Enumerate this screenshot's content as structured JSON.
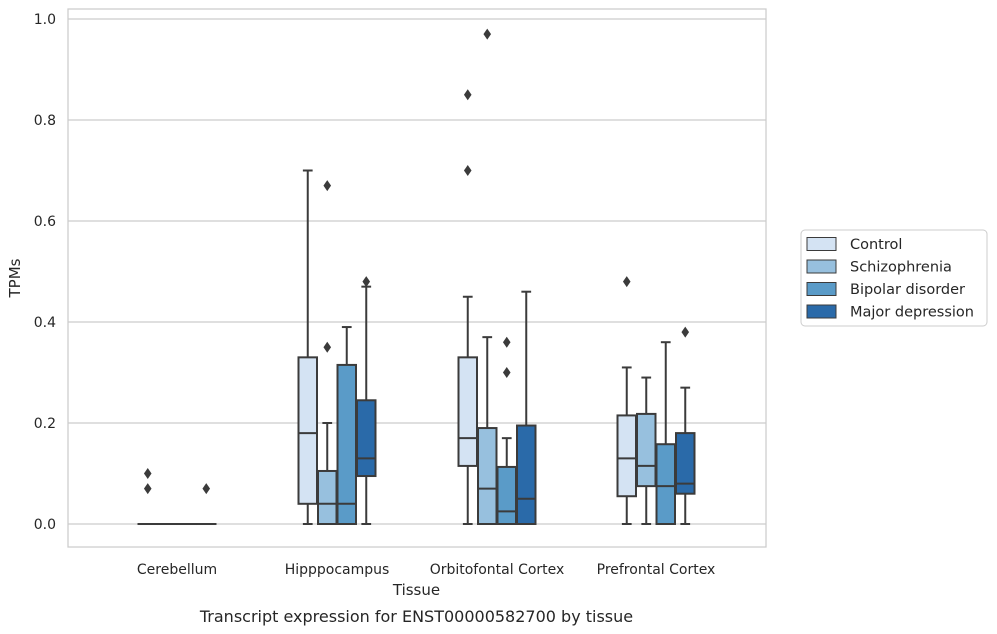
{
  "chart_data": {
    "type": "box",
    "caption": "Transcript expression for ENST00000582700 by tissue",
    "xlabel": "Tissue",
    "ylabel": "TPMs",
    "ylim": [
      -0.045,
      1.02
    ],
    "yticks": [
      0.0,
      0.2,
      0.4,
      0.6,
      0.8,
      1.0
    ],
    "ytick_labels": [
      "0.0",
      "0.2",
      "0.4",
      "0.6",
      "0.8",
      "1.0"
    ],
    "grid": "horizontal",
    "legend_position": "right",
    "categories": [
      "Cerebellum",
      "Hipppocampus",
      "Orbitofontal Cortex",
      "Prefrontal Cortex"
    ],
    "series": [
      {
        "name": "Control",
        "color": "#d4e3f3",
        "boxes": [
          {
            "whisker_low": 0.0,
            "q1": 0.0,
            "median": 0.0,
            "q3": 0.0,
            "whisker_high": 0.0,
            "outliers": [
              0.07,
              0.1
            ]
          },
          {
            "whisker_low": 0.0,
            "q1": 0.04,
            "median": 0.18,
            "q3": 0.33,
            "whisker_high": 0.7,
            "outliers": []
          },
          {
            "whisker_low": 0.0,
            "q1": 0.115,
            "median": 0.17,
            "q3": 0.33,
            "whisker_high": 0.45,
            "outliers": [
              0.7,
              0.85
            ]
          },
          {
            "whisker_low": 0.0,
            "q1": 0.055,
            "median": 0.13,
            "q3": 0.215,
            "whisker_high": 0.31,
            "outliers": [
              0.48
            ]
          }
        ]
      },
      {
        "name": "Schizophrenia",
        "color": "#97c0de",
        "boxes": [
          {
            "whisker_low": 0.0,
            "q1": 0.0,
            "median": 0.0,
            "q3": 0.0,
            "whisker_high": 0.0,
            "outliers": []
          },
          {
            "whisker_low": 0.0,
            "q1": 0.0,
            "median": 0.04,
            "q3": 0.105,
            "whisker_high": 0.2,
            "outliers": [
              0.35,
              0.67
            ]
          },
          {
            "whisker_low": 0.0,
            "q1": 0.0,
            "median": 0.07,
            "q3": 0.19,
            "whisker_high": 0.37,
            "outliers": [
              0.97
            ]
          },
          {
            "whisker_low": 0.0,
            "q1": 0.075,
            "median": 0.115,
            "q3": 0.218,
            "whisker_high": 0.29,
            "outliers": []
          }
        ]
      },
      {
        "name": "Bipolar disorder",
        "color": "#5a9bc8",
        "boxes": [
          {
            "whisker_low": 0.0,
            "q1": 0.0,
            "median": 0.0,
            "q3": 0.0,
            "whisker_high": 0.0,
            "outliers": []
          },
          {
            "whisker_low": 0.0,
            "q1": 0.0,
            "median": 0.04,
            "q3": 0.315,
            "whisker_high": 0.39,
            "outliers": []
          },
          {
            "whisker_low": 0.0,
            "q1": 0.0,
            "median": 0.025,
            "q3": 0.113,
            "whisker_high": 0.17,
            "outliers": [
              0.3,
              0.36
            ]
          },
          {
            "whisker_low": 0.0,
            "q1": 0.0,
            "median": 0.075,
            "q3": 0.158,
            "whisker_high": 0.36,
            "outliers": []
          }
        ]
      },
      {
        "name": "Major depression",
        "color": "#2a6aa9",
        "boxes": [
          {
            "whisker_low": 0.0,
            "q1": 0.0,
            "median": 0.0,
            "q3": 0.0,
            "whisker_high": 0.0,
            "outliers": [
              0.07
            ]
          },
          {
            "whisker_low": 0.0,
            "q1": 0.095,
            "median": 0.13,
            "q3": 0.245,
            "whisker_high": 0.47,
            "outliers": [
              0.48
            ]
          },
          {
            "whisker_low": 0.0,
            "q1": 0.0,
            "median": 0.05,
            "q3": 0.195,
            "whisker_high": 0.46,
            "outliers": []
          },
          {
            "whisker_low": 0.0,
            "q1": 0.06,
            "median": 0.08,
            "q3": 0.18,
            "whisker_high": 0.27,
            "outliers": [
              0.38
            ]
          }
        ]
      }
    ]
  }
}
